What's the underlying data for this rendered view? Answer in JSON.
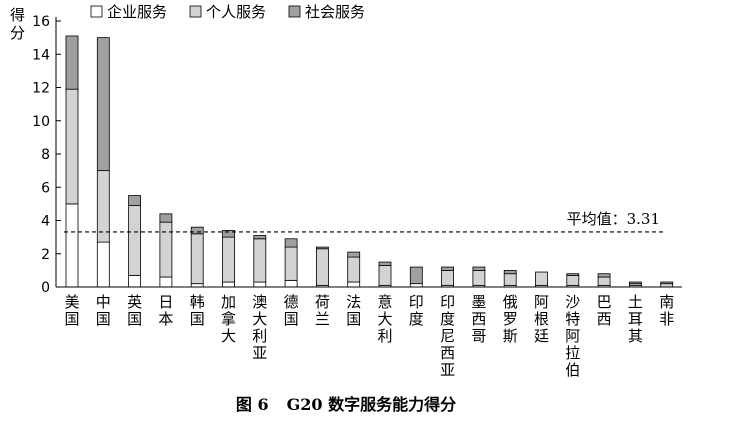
{
  "chart_data": {
    "type": "bar",
    "stacked": true,
    "ylabel": "得分",
    "ylim": [
      0,
      16
    ],
    "yticks": [
      0,
      2,
      4,
      6,
      8,
      10,
      12,
      14,
      16
    ],
    "categories": [
      "美国",
      "中国",
      "英国",
      "日本",
      "韩国",
      "加拿大",
      "澳大利亚",
      "德国",
      "荷兰",
      "法国",
      "意大利",
      "印度",
      "印度尼西亚",
      "墨西哥",
      "俄罗斯",
      "阿根廷",
      "沙特阿拉伯",
      "巴西",
      "土耳其",
      "南非"
    ],
    "series": [
      {
        "name": "企业服务",
        "color": "#ffffff",
        "values": [
          5.0,
          2.7,
          0.7,
          0.6,
          0.2,
          0.3,
          0.3,
          0.4,
          0.1,
          0.3,
          0.1,
          0.2,
          0.1,
          0.1,
          0.1,
          0.1,
          0.1,
          0.1,
          0.1,
          0.0
        ]
      },
      {
        "name": "个人服务",
        "color": "#d3d3d3",
        "values": [
          6.9,
          4.3,
          4.2,
          3.3,
          3.0,
          2.7,
          2.6,
          2.0,
          2.2,
          1.5,
          1.2,
          0.0,
          0.9,
          0.9,
          0.7,
          0.8,
          0.6,
          0.5,
          0.1,
          0.2
        ]
      },
      {
        "name": "社会服务",
        "color": "#a0a0a0",
        "values": [
          3.2,
          8.0,
          0.6,
          0.5,
          0.4,
          0.4,
          0.2,
          0.5,
          0.1,
          0.3,
          0.2,
          1.0,
          0.2,
          0.2,
          0.2,
          0.0,
          0.1,
          0.2,
          0.1,
          0.1
        ]
      }
    ],
    "reference_line": {
      "value": 3.31,
      "label": "平均值：3.31",
      "style": "dashed"
    },
    "legend": "top",
    "grid": false
  },
  "caption": {
    "figure_label": "图 6",
    "title": "G20 数字服务能力得分"
  }
}
